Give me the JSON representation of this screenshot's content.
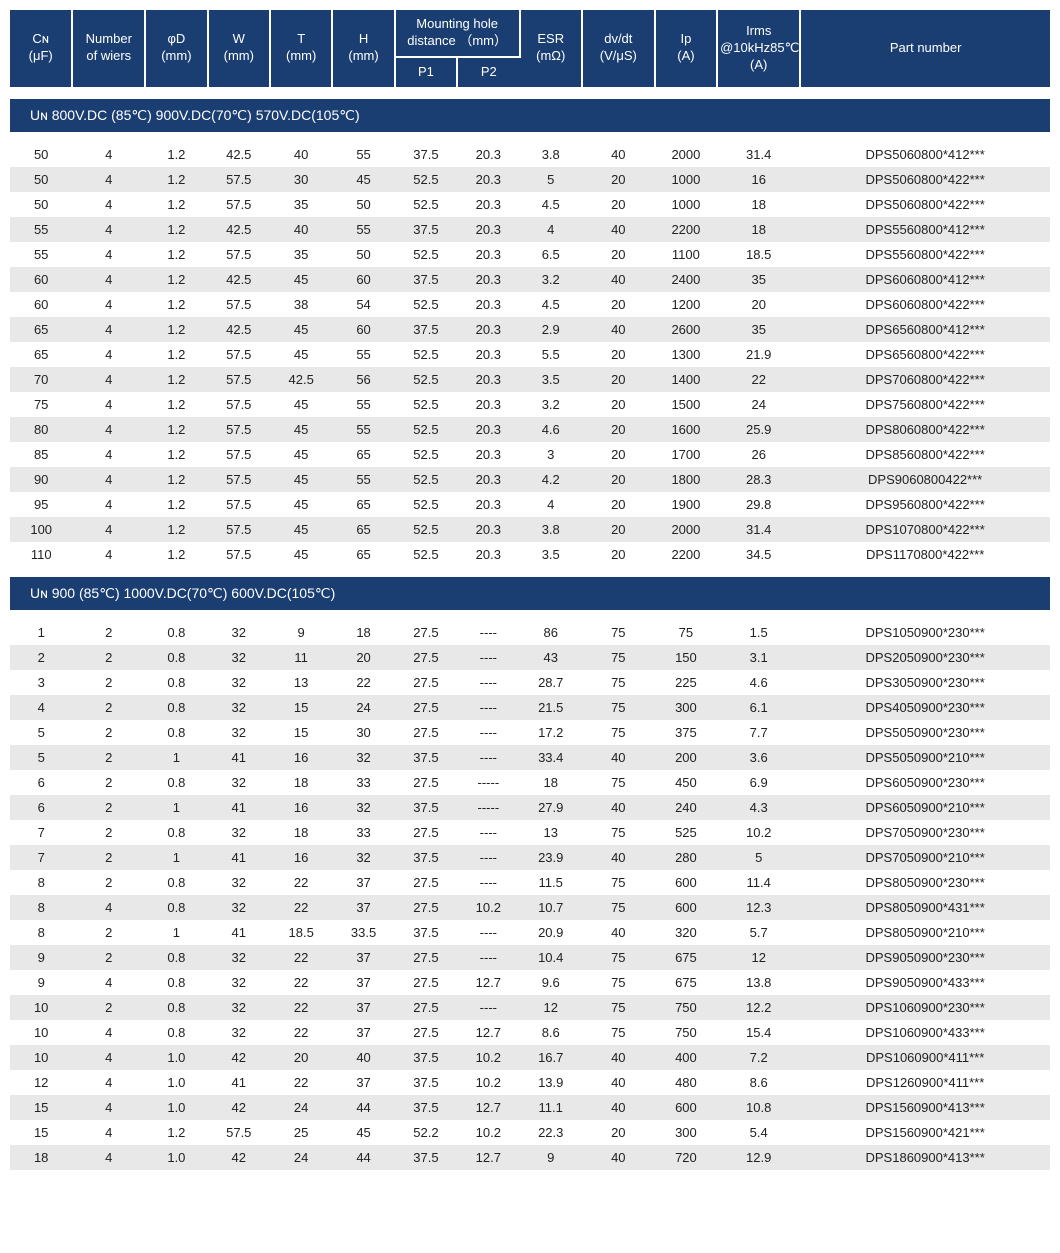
{
  "colors": {
    "header_bg": "#1a3e72",
    "header_text": "#ffffff",
    "row_even_bg": "#e8e8e8",
    "row_odd_bg": "#ffffff",
    "body_text": "#222222"
  },
  "columns": {
    "widths_pct": [
      6,
      7,
      6,
      6,
      6,
      6,
      6,
      6,
      6,
      7,
      6,
      8,
      24
    ],
    "headers": [
      {
        "top": "Cɴ",
        "bottom": "(μF)"
      },
      {
        "top": "Number",
        "bottom": "of wiers"
      },
      {
        "top": "φD",
        "bottom": "(mm)"
      },
      {
        "top": "W",
        "bottom": "(mm)"
      },
      {
        "top": "T",
        "bottom": "(mm)"
      },
      {
        "top": "H",
        "bottom": "(mm)"
      },
      {
        "group": "Mounting hole distance （mm）",
        "sub": "P1"
      },
      {
        "group_cont": true,
        "sub": "P2"
      },
      {
        "top": "ESR",
        "bottom": "(mΩ)"
      },
      {
        "top": "dv/dt",
        "bottom": "(V/μS)"
      },
      {
        "top": "Ip",
        "bottom": "(A)"
      },
      {
        "top": "Irms",
        "mid": "@10kHz85℃",
        "bottom": "(A)"
      },
      {
        "top": "Part number"
      }
    ]
  },
  "sections": [
    {
      "title": "Uɴ 800V.DC (85℃)   900V.DC(70℃)   570V.DC(105℃)",
      "rows": [
        [
          "50",
          "4",
          "1.2",
          "42.5",
          "40",
          "55",
          "37.5",
          "20.3",
          "3.8",
          "40",
          "2000",
          "31.4",
          "DPS5060800*412***"
        ],
        [
          "50",
          "4",
          "1.2",
          "57.5",
          "30",
          "45",
          "52.5",
          "20.3",
          "5",
          "20",
          "1000",
          "16",
          "DPS5060800*422***"
        ],
        [
          "50",
          "4",
          "1.2",
          "57.5",
          "35",
          "50",
          "52.5",
          "20.3",
          "4.5",
          "20",
          "1000",
          "18",
          "DPS5060800*422***"
        ],
        [
          "55",
          "4",
          "1.2",
          "42.5",
          "40",
          "55",
          "37.5",
          "20.3",
          "4",
          "40",
          "2200",
          "18",
          "DPS5560800*412***"
        ],
        [
          "55",
          "4",
          "1.2",
          "57.5",
          "35",
          "50",
          "52.5",
          "20.3",
          "6.5",
          "20",
          "1100",
          "18.5",
          "DPS5560800*422***"
        ],
        [
          "60",
          "4",
          "1.2",
          "42.5",
          "45",
          "60",
          "37.5",
          "20.3",
          "3.2",
          "40",
          "2400",
          "35",
          "DPS6060800*412***"
        ],
        [
          "60",
          "4",
          "1.2",
          "57.5",
          "38",
          "54",
          "52.5",
          "20.3",
          "4.5",
          "20",
          "1200",
          "20",
          "DPS6060800*422***"
        ],
        [
          "65",
          "4",
          "1.2",
          "42.5",
          "45",
          "60",
          "37.5",
          "20.3",
          "2.9",
          "40",
          "2600",
          "35",
          "DPS6560800*412***"
        ],
        [
          "65",
          "4",
          "1.2",
          "57.5",
          "45",
          "55",
          "52.5",
          "20.3",
          "5.5",
          "20",
          "1300",
          "21.9",
          "DPS6560800*422***"
        ],
        [
          "70",
          "4",
          "1.2",
          "57.5",
          "42.5",
          "56",
          "52.5",
          "20.3",
          "3.5",
          "20",
          "1400",
          "22",
          "DPS7060800*422***"
        ],
        [
          "75",
          "4",
          "1.2",
          "57.5",
          "45",
          "55",
          "52.5",
          "20.3",
          "3.2",
          "20",
          "1500",
          "24",
          "DPS7560800*422***"
        ],
        [
          "80",
          "4",
          "1.2",
          "57.5",
          "45",
          "55",
          "52.5",
          "20.3",
          "4.6",
          "20",
          "1600",
          "25.9",
          "DPS8060800*422***"
        ],
        [
          "85",
          "4",
          "1.2",
          "57.5",
          "45",
          "65",
          "52.5",
          "20.3",
          "3",
          "20",
          "1700",
          "26",
          "DPS8560800*422***"
        ],
        [
          "90",
          "4",
          "1.2",
          "57.5",
          "45",
          "55",
          "52.5",
          "20.3",
          "4.2",
          "20",
          "1800",
          "28.3",
          "DPS9060800422***"
        ],
        [
          "95",
          "4",
          "1.2",
          "57.5",
          "45",
          "65",
          "52.5",
          "20.3",
          "4",
          "20",
          "1900",
          "29.8",
          "DPS9560800*422***"
        ],
        [
          "100",
          "4",
          "1.2",
          "57.5",
          "45",
          "65",
          "52.5",
          "20.3",
          "3.8",
          "20",
          "2000",
          "31.4",
          "DPS1070800*422***"
        ],
        [
          "110",
          "4",
          "1.2",
          "57.5",
          "45",
          "65",
          "52.5",
          "20.3",
          "3.5",
          "20",
          "2200",
          "34.5",
          "DPS1170800*422***"
        ]
      ]
    },
    {
      "title": "Uɴ 900 (85℃)   1000V.DC(70℃)   600V.DC(105℃)",
      "rows": [
        [
          "1",
          "2",
          "0.8",
          "32",
          "9",
          "18",
          "27.5",
          "----",
          "86",
          "75",
          "75",
          "1.5",
          "DPS1050900*230***"
        ],
        [
          "2",
          "2",
          "0.8",
          "32",
          "11",
          "20",
          "27.5",
          "----",
          "43",
          "75",
          "150",
          "3.1",
          "DPS2050900*230***"
        ],
        [
          "3",
          "2",
          "0.8",
          "32",
          "13",
          "22",
          "27.5",
          "----",
          "28.7",
          "75",
          "225",
          "4.6",
          "DPS3050900*230***"
        ],
        [
          "4",
          "2",
          "0.8",
          "32",
          "15",
          "24",
          "27.5",
          "----",
          "21.5",
          "75",
          "300",
          "6.1",
          "DPS4050900*230***"
        ],
        [
          "5",
          "2",
          "0.8",
          "32",
          "15",
          "30",
          "27.5",
          "----",
          "17.2",
          "75",
          "375",
          "7.7",
          "DPS5050900*230***"
        ],
        [
          "5",
          "2",
          "1",
          "41",
          "16",
          "32",
          "37.5",
          "----",
          "33.4",
          "40",
          "200",
          "3.6",
          "DPS5050900*210***"
        ],
        [
          "6",
          "2",
          "0.8",
          "32",
          "18",
          "33",
          "27.5",
          "-----",
          "18",
          "75",
          "450",
          "6.9",
          "DPS6050900*230***"
        ],
        [
          "6",
          "2",
          "1",
          "41",
          "16",
          "32",
          "37.5",
          "-----",
          "27.9",
          "40",
          "240",
          "4.3",
          "DPS6050900*210***"
        ],
        [
          "7",
          "2",
          "0.8",
          "32",
          "18",
          "33",
          "27.5",
          "----",
          "13",
          "75",
          "525",
          "10.2",
          "DPS7050900*230***"
        ],
        [
          "7",
          "2",
          "1",
          "41",
          "16",
          "32",
          "37.5",
          "----",
          "23.9",
          "40",
          "280",
          "5",
          "DPS7050900*210***"
        ],
        [
          "8",
          "2",
          "0.8",
          "32",
          "22",
          "37",
          "27.5",
          "----",
          "11.5",
          "75",
          "600",
          "11.4",
          "DPS8050900*230***"
        ],
        [
          "8",
          "4",
          "0.8",
          "32",
          "22",
          "37",
          "27.5",
          "10.2",
          "10.7",
          "75",
          "600",
          "12.3",
          "DPS8050900*431***"
        ],
        [
          "8",
          "2",
          "1",
          "41",
          "18.5",
          "33.5",
          "37.5",
          "----",
          "20.9",
          "40",
          "320",
          "5.7",
          "DPS8050900*210***"
        ],
        [
          "9",
          "2",
          "0.8",
          "32",
          "22",
          "37",
          "27.5",
          "----",
          "10.4",
          "75",
          "675",
          "12",
          "DPS9050900*230***"
        ],
        [
          "9",
          "4",
          "0.8",
          "32",
          "22",
          "37",
          "27.5",
          "12.7",
          "9.6",
          "75",
          "675",
          "13.8",
          "DPS9050900*433***"
        ],
        [
          "10",
          "2",
          "0.8",
          "32",
          "22",
          "37",
          "27.5",
          "----",
          "12",
          "75",
          "750",
          "12.2",
          "DPS1060900*230***"
        ],
        [
          "10",
          "4",
          "0.8",
          "32",
          "22",
          "37",
          "27.5",
          "12.7",
          "8.6",
          "75",
          "750",
          "15.4",
          "DPS1060900*433***"
        ],
        [
          "10",
          "4",
          "1.0",
          "42",
          "20",
          "40",
          "37.5",
          "10.2",
          "16.7",
          "40",
          "400",
          "7.2",
          "DPS1060900*411***"
        ],
        [
          "12",
          "4",
          "1.0",
          "41",
          "22",
          "37",
          "37.5",
          "10.2",
          "13.9",
          "40",
          "480",
          "8.6",
          "DPS1260900*411***"
        ],
        [
          "15",
          "4",
          "1.0",
          "42",
          "24",
          "44",
          "37.5",
          "12.7",
          "11.1",
          "40",
          "600",
          "10.8",
          "DPS1560900*413***"
        ],
        [
          "15",
          "4",
          "1.2",
          "57.5",
          "25",
          "45",
          "52.2",
          "10.2",
          "22.3",
          "20",
          "300",
          "5.4",
          "DPS1560900*421***"
        ],
        [
          "18",
          "4",
          "1.0",
          "42",
          "24",
          "44",
          "37.5",
          "12.7",
          "9",
          "40",
          "720",
          "12.9",
          "DPS1860900*413***"
        ]
      ]
    }
  ]
}
